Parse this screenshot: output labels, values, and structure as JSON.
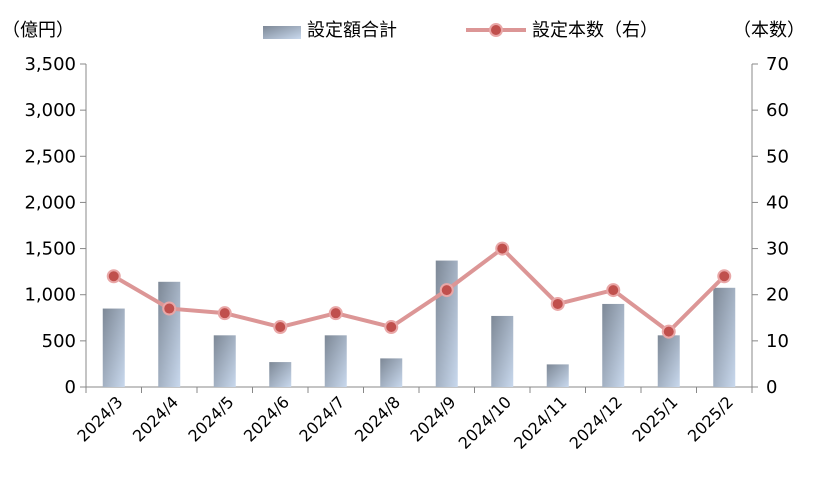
{
  "chart_data": {
    "type": "bar+line",
    "categories": [
      "2024/3",
      "2024/4",
      "2024/5",
      "2024/6",
      "2024/7",
      "2024/8",
      "2024/9",
      "2024/10",
      "2024/11",
      "2024/12",
      "2025/1",
      "2025/2"
    ],
    "series": [
      {
        "name": "設定額合計",
        "type": "bar",
        "axis": "left",
        "values": [
          850,
          1140,
          560,
          270,
          560,
          310,
          1370,
          770,
          245,
          900,
          560,
          1075
        ]
      },
      {
        "name": "設定本数（右）",
        "type": "line",
        "axis": "right",
        "values": [
          24,
          17,
          16,
          13,
          16,
          13,
          21,
          30,
          18,
          21,
          12,
          24
        ]
      }
    ],
    "left_axis": {
      "unit_label": "（億円）",
      "ylim": [
        0,
        3500
      ],
      "ticks": [
        0,
        500,
        1000,
        1500,
        2000,
        2500,
        3000,
        3500
      ],
      "tick_labels": [
        "0",
        "500",
        "1,000",
        "1,500",
        "2,000",
        "2,500",
        "3,000",
        "3,500"
      ]
    },
    "right_axis": {
      "unit_label": "（本数）",
      "ylim": [
        0,
        70
      ],
      "ticks": [
        0,
        10,
        20,
        30,
        40,
        50,
        60,
        70
      ],
      "tick_labels": [
        "0",
        "10",
        "20",
        "30",
        "40",
        "50",
        "60",
        "70"
      ]
    },
    "grid": false,
    "legend_position": "top-center",
    "colors": {
      "bar_top": "#7d8896",
      "bar_bottom": "#c9d9ee",
      "line": "#dc9696",
      "marker_fill": "#c0504d",
      "marker_stroke": "#e9a7a7",
      "axis": "#888888"
    }
  }
}
